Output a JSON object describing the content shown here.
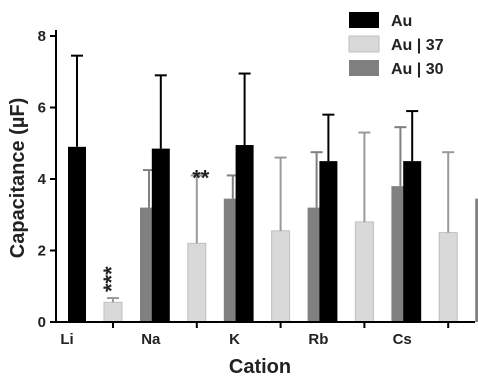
{
  "chart_data": {
    "type": "bar",
    "title": "",
    "xlabel": "Cation",
    "ylabel": "Capacitance (µF)",
    "categories": [
      "Li",
      "Na",
      "K",
      "Rb",
      "Cs"
    ],
    "ylim": [
      0,
      8
    ],
    "yticks": [
      "0",
      "2",
      "4",
      "6",
      "8"
    ],
    "legend_position": "top-right",
    "series": [
      {
        "name": "Au",
        "color": "#000000",
        "values": [
          4.9,
          4.85,
          4.95,
          4.5,
          4.5
        ],
        "errors": [
          2.55,
          2.05,
          2.0,
          1.3,
          1.4
        ]
      },
      {
        "name": "Au | 37",
        "color": "#d9d9d9",
        "values": [
          0.55,
          2.2,
          2.55,
          2.8,
          2.5
        ],
        "errors": [
          0.12,
          1.9,
          2.05,
          2.5,
          2.25
        ]
      },
      {
        "name": "Au | 30",
        "color": "#808080",
        "values": [
          3.2,
          3.45,
          3.2,
          3.8,
          3.45
        ],
        "errors": [
          1.05,
          0.65,
          1.55,
          1.65,
          0.65
        ]
      }
    ],
    "annotations": [
      {
        "category": "Li",
        "series": "Au | 37",
        "text": "***"
      },
      {
        "category": "Na",
        "series": "Au | 37",
        "text": "**"
      }
    ]
  }
}
